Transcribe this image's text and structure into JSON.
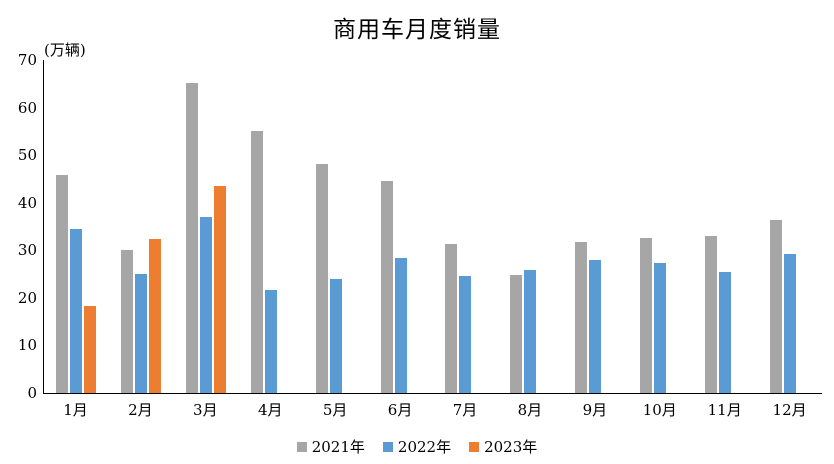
{
  "chart_data": {
    "type": "bar",
    "title": "商用车月度销量",
    "ylabel": "(万辆)",
    "xlabel": "",
    "categories": [
      "1月",
      "2月",
      "3月",
      "4月",
      "5月",
      "6月",
      "7月",
      "8月",
      "9月",
      "10月",
      "11月",
      "12月"
    ],
    "series": [
      {
        "name": "2021年",
        "color": "#A6A6A6",
        "values": [
          45.8,
          30.0,
          65.2,
          55.0,
          48.2,
          44.6,
          31.3,
          24.8,
          31.7,
          32.5,
          33.0,
          36.4
        ]
      },
      {
        "name": "2022年",
        "color": "#5B9BD5",
        "values": [
          34.5,
          25.0,
          37.0,
          21.7,
          24.0,
          28.3,
          24.6,
          25.9,
          28.0,
          27.3,
          25.4,
          29.2
        ]
      },
      {
        "name": "2023年",
        "color": "#ED7D31",
        "values": [
          18.2,
          32.4,
          43.6,
          null,
          null,
          null,
          null,
          null,
          null,
          null,
          null,
          null
        ]
      }
    ],
    "ylim": [
      0,
      70
    ],
    "ytick_step": 10,
    "yticks": [
      0,
      10,
      20,
      30,
      40,
      50,
      60,
      70
    ],
    "grid": false,
    "legend_position": "bottom",
    "axis_color": "#000000",
    "background_color": "#ffffff"
  }
}
